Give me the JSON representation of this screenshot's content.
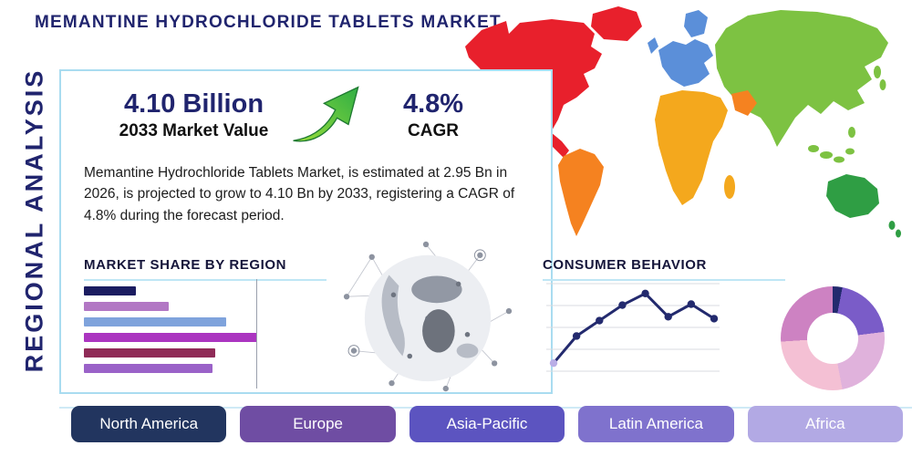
{
  "page": {
    "title": "MEMANTINE HYDROCHLORIDE TABLETS MARKET",
    "side_label": "REGIONAL ANALYSIS"
  },
  "theme": {
    "navy": "#20246e",
    "light_blue": "#a9dcf0",
    "arrow_green": "#3cb54a",
    "background": "#ffffff"
  },
  "stats": {
    "market_value": "4.10 Billion",
    "market_value_label": "2033 Market Value",
    "cagr_value": "4.8%",
    "cagr_label": "CAGR",
    "description": "Memantine Hydrochloride Tablets Market, is estimated at 2.95 Bn in 2026, is projected to grow to 4.10 Bn by 2033, registering a CAGR of 4.8% during the forecast period."
  },
  "sections": {
    "market_share_title": "MARKET SHARE BY REGION",
    "consumer_behavior_title": "CONSUMER BEHAVIOR"
  },
  "icons": {
    "growth_arrow": "up-right-curved-arrow",
    "globe_network": "connected-world-globe"
  },
  "regions": [
    {
      "label": "North America",
      "color": "#22355f"
    },
    {
      "label": "Europe",
      "color": "#6f4da3"
    },
    {
      "label": "Asia-Pacific",
      "color": "#5c54c0"
    },
    {
      "label": "Latin America",
      "color": "#7f72cd"
    },
    {
      "label": "Africa",
      "color": "#b2a9e4"
    }
  ],
  "map": {
    "regions": [
      {
        "name": "north-america",
        "color": "#e8202c"
      },
      {
        "name": "greenland",
        "color": "#e8202c"
      },
      {
        "name": "south-america",
        "color": "#f58220"
      },
      {
        "name": "europe",
        "color": "#5b8fd9"
      },
      {
        "name": "scandinavia",
        "color": "#5b8fd9"
      },
      {
        "name": "uk",
        "color": "#5b8fd9"
      },
      {
        "name": "africa",
        "color": "#f4a81d"
      },
      {
        "name": "madagascar",
        "color": "#f4a81d"
      },
      {
        "name": "middle-east",
        "color": "#f58220"
      },
      {
        "name": "asia",
        "color": "#7dc242"
      },
      {
        "name": "se-asia-islands",
        "color": "#7dc242"
      },
      {
        "name": "japan",
        "color": "#7dc242"
      },
      {
        "name": "australia",
        "color": "#2f9e44"
      },
      {
        "name": "new-zealand",
        "color": "#2f9e44"
      }
    ]
  },
  "chart_data": [
    {
      "id": "market_share_by_region",
      "type": "bar",
      "title": "MARKET SHARE BY REGION",
      "orientation": "horizontal",
      "values": [
        30,
        49,
        82,
        100,
        76,
        74
      ],
      "colors": [
        "#1b1c60",
        "#b277c4",
        "#7fa3dc",
        "#ab35c0",
        "#8f2b57",
        "#9a62c8"
      ],
      "xlim": [
        0,
        100
      ],
      "grid": false
    },
    {
      "id": "consumer_behavior_trend",
      "type": "line",
      "title": "CONSUMER BEHAVIOR",
      "values": [
        14,
        42,
        58,
        74,
        86,
        62,
        75,
        60
      ],
      "ylim": [
        0,
        100
      ],
      "grid": true,
      "line_color": "#232a6e",
      "first_point_color": "#b9aee6"
    },
    {
      "id": "regional_distribution",
      "type": "pie",
      "style": "donut",
      "values": [
        3,
        20,
        24,
        27,
        26
      ],
      "colors": [
        "#232a6e",
        "#7a5cc8",
        "#e0b2dc",
        "#f4c0d4",
        "#cd82c2"
      ]
    }
  ]
}
